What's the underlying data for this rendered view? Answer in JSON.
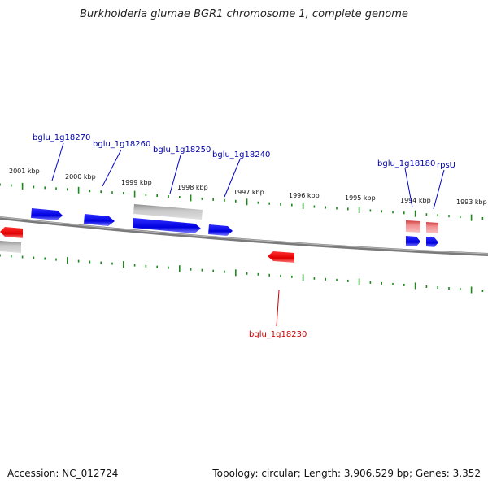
{
  "title": "Burkholderia glumae BGR1 chromosome 1, complete genome",
  "footer": {
    "accession": "Accession: NC_012724",
    "topology": "Topology: circular; Length: 3,906,529 bp; Genes: 3,352"
  },
  "colors": {
    "forward_gene": "#0000ee",
    "reverse_gene": "#ee0000",
    "pseudo_gene": "#b0b0b0",
    "rna_gene": "#e88080",
    "tick": "#1a8a1a",
    "backbone": "#808080"
  },
  "scale": {
    "labels": [
      "2001 kbp",
      "2000 kbp",
      "1999 kbp",
      "1998 kbp",
      "1997 kbp",
      "1996 kbp",
      "1995 kbp",
      "1994 kbp",
      "1993 kbp"
    ]
  },
  "genes": {
    "upper": [
      "bglu_1g18270",
      "bglu_1g18260",
      "bglu_1g18250",
      "bglu_1g18240",
      "bglu_1g18180",
      "rpsU"
    ],
    "lower": [
      "bglu_1g18230"
    ]
  }
}
